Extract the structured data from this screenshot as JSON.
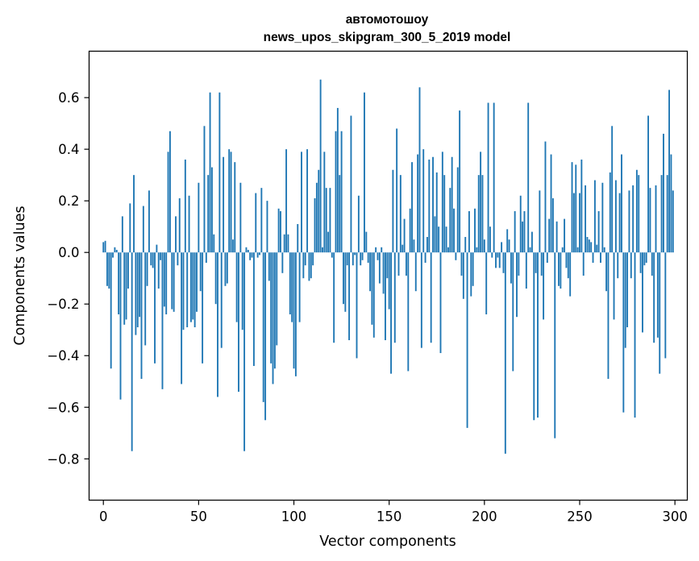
{
  "chart_data": {
    "type": "bar",
    "title": "автомотошоу",
    "subtitle": "news_upos_skipgram_300_5_2019 model",
    "xlabel": "Vector components",
    "ylabel": "Components values",
    "xlim": [
      -7.5,
      306.5
    ],
    "ylim": [
      -0.96,
      0.78
    ],
    "x_ticks": [
      0,
      50,
      100,
      150,
      200,
      250,
      300
    ],
    "x_tick_labels": [
      "0",
      "50",
      "100",
      "150",
      "200",
      "250",
      "300"
    ],
    "y_ticks": [
      -0.8,
      -0.6,
      -0.4,
      -0.2,
      0.0,
      0.2,
      0.4,
      0.6
    ],
    "y_tick_labels": [
      "−0.8",
      "−0.6",
      "−0.4",
      "−0.2",
      "0.0",
      "0.2",
      "0.4",
      "0.6"
    ],
    "grid": false,
    "legend": "none",
    "bar_color": "#1f77b4",
    "x": [
      0,
      1,
      2,
      3,
      4,
      5,
      6,
      7,
      8,
      9,
      10,
      11,
      12,
      13,
      14,
      15,
      16,
      17,
      18,
      19,
      20,
      21,
      22,
      23,
      24,
      25,
      26,
      27,
      28,
      29,
      30,
      31,
      32,
      33,
      34,
      35,
      36,
      37,
      38,
      39,
      40,
      41,
      42,
      43,
      44,
      45,
      46,
      47,
      48,
      49,
      50,
      51,
      52,
      53,
      54,
      55,
      56,
      57,
      58,
      59,
      60,
      61,
      62,
      63,
      64,
      65,
      66,
      67,
      68,
      69,
      70,
      71,
      72,
      73,
      74,
      75,
      76,
      77,
      78,
      79,
      80,
      81,
      82,
      83,
      84,
      85,
      86,
      87,
      88,
      89,
      90,
      91,
      92,
      93,
      94,
      95,
      96,
      97,
      98,
      99,
      100,
      101,
      102,
      103,
      104,
      105,
      106,
      107,
      108,
      109,
      110,
      111,
      112,
      113,
      114,
      115,
      116,
      117,
      118,
      119,
      120,
      121,
      122,
      123,
      124,
      125,
      126,
      127,
      128,
      129,
      130,
      131,
      132,
      133,
      134,
      135,
      136,
      137,
      138,
      139,
      140,
      141,
      142,
      143,
      144,
      145,
      146,
      147,
      148,
      149,
      150,
      151,
      152,
      153,
      154,
      155,
      156,
      157,
      158,
      159,
      160,
      161,
      162,
      163,
      164,
      165,
      166,
      167,
      168,
      169,
      170,
      171,
      172,
      173,
      174,
      175,
      176,
      177,
      178,
      179,
      180,
      181,
      182,
      183,
      184,
      185,
      186,
      187,
      188,
      189,
      190,
      191,
      192,
      193,
      194,
      195,
      196,
      197,
      198,
      199,
      200,
      201,
      202,
      203,
      204,
      205,
      206,
      207,
      208,
      209,
      210,
      211,
      212,
      213,
      214,
      215,
      216,
      217,
      218,
      219,
      220,
      221,
      222,
      223,
      224,
      225,
      226,
      227,
      228,
      229,
      230,
      231,
      232,
      233,
      234,
      235,
      236,
      237,
      238,
      239,
      240,
      241,
      242,
      243,
      244,
      245,
      246,
      247,
      248,
      249,
      250,
      251,
      252,
      253,
      254,
      255,
      256,
      257,
      258,
      259,
      260,
      261,
      262,
      263,
      264,
      265,
      266,
      267,
      268,
      269,
      270,
      271,
      272,
      273,
      274,
      275,
      276,
      277,
      278,
      279,
      280,
      281,
      282,
      283,
      284,
      285,
      286,
      287,
      288,
      289,
      290,
      291,
      292,
      293,
      294,
      295,
      296,
      297,
      298,
      299
    ],
    "values": [
      0.04,
      0.045,
      -0.13,
      -0.14,
      -0.45,
      -0.02,
      0.02,
      0.01,
      -0.24,
      -0.57,
      0.14,
      -0.28,
      -0.26,
      -0.14,
      0.19,
      -0.77,
      0.3,
      -0.32,
      -0.29,
      -0.25,
      -0.49,
      0.18,
      -0.36,
      -0.13,
      0.24,
      -0.05,
      -0.06,
      -0.43,
      0.03,
      -0.14,
      -0.03,
      -0.53,
      -0.21,
      -0.24,
      0.39,
      0.47,
      -0.22,
      -0.23,
      0.14,
      -0.05,
      0.21,
      -0.51,
      -0.3,
      0.36,
      -0.29,
      0.22,
      -0.27,
      -0.26,
      -0.29,
      -0.23,
      0.27,
      -0.15,
      -0.43,
      0.49,
      -0.04,
      0.3,
      0.62,
      0.33,
      0.07,
      -0.2,
      -0.56,
      0.62,
      -0.37,
      0.37,
      -0.13,
      -0.12,
      0.4,
      0.39,
      0.05,
      0.35,
      -0.27,
      -0.54,
      0.27,
      -0.3,
      -0.77,
      0.02,
      0.01,
      -0.03,
      -0.02,
      -0.44,
      0.23,
      -0.02,
      -0.01,
      0.25,
      -0.58,
      -0.65,
      0.2,
      -0.11,
      -0.43,
      -0.51,
      -0.45,
      -0.36,
      0.17,
      0.16,
      -0.08,
      0.07,
      0.4,
      0.07,
      -0.24,
      -0.27,
      -0.45,
      -0.48,
      0.11,
      -0.27,
      0.39,
      -0.1,
      -0.05,
      0.4,
      -0.11,
      -0.1,
      -0.05,
      0.21,
      0.27,
      0.32,
      0.67,
      0.02,
      0.39,
      0.25,
      0.08,
      0.25,
      -0.02,
      -0.35,
      0.47,
      0.56,
      0.3,
      0.47,
      -0.2,
      -0.23,
      -0.05,
      -0.34,
      0.53,
      -0.05,
      -0.01,
      -0.41,
      0.22,
      -0.05,
      -0.03,
      0.62,
      0.08,
      -0.04,
      -0.15,
      -0.28,
      -0.33,
      0.02,
      -0.03,
      -0.12,
      0.02,
      -0.16,
      -0.34,
      -0.1,
      -0.22,
      -0.47,
      0.32,
      -0.35,
      0.48,
      -0.09,
      0.3,
      0.03,
      0.13,
      -0.09,
      -0.46,
      0.17,
      0.35,
      0.05,
      -0.15,
      0.38,
      0.64,
      -0.37,
      0.4,
      -0.04,
      0.06,
      0.36,
      -0.35,
      0.37,
      0.14,
      0.31,
      0.1,
      -0.39,
      0.39,
      0.3,
      0.1,
      0.02,
      0.25,
      0.37,
      0.17,
      -0.03,
      0.33,
      0.55,
      -0.09,
      -0.18,
      0.06,
      -0.68,
      0.16,
      -0.17,
      -0.13,
      0.17,
      0.02,
      0.3,
      0.39,
      0.3,
      0.05,
      -0.24,
      0.58,
      0.1,
      -0.02,
      0.58,
      -0.06,
      -0.02,
      -0.06,
      0.04,
      -0.08,
      -0.78,
      0.09,
      0.05,
      -0.12,
      -0.46,
      0.16,
      -0.25,
      -0.09,
      0.22,
      0.12,
      0.16,
      -0.14,
      0.58,
      0.02,
      0.08,
      -0.65,
      -0.08,
      -0.64,
      0.24,
      -0.09,
      -0.26,
      0.43,
      -0.04,
      0.13,
      0.38,
      0.21,
      -0.72,
      0.12,
      -0.13,
      -0.14,
      0.02,
      0.13,
      -0.06,
      -0.1,
      -0.17,
      0.35,
      0.23,
      0.34,
      0.02,
      0.23,
      0.36,
      -0.09,
      0.26,
      0.06,
      0.05,
      0.04,
      -0.04,
      0.28,
      0.03,
      0.16,
      -0.04,
      0.27,
      0.02,
      -0.15,
      -0.49,
      0.31,
      0.49,
      -0.26,
      0.28,
      -0.1,
      0.23,
      0.38,
      -0.62,
      -0.37,
      -0.29,
      0.24,
      -0.1,
      0.26,
      -0.64,
      0.32,
      0.3,
      -0.08,
      -0.31,
      -0.05,
      -0.04,
      0.53,
      0.25,
      -0.09,
      -0.35,
      0.26,
      -0.33,
      -0.47,
      0.3,
      0.46,
      -0.41,
      0.3,
      0.63,
      0.38,
      0.24
    ]
  }
}
